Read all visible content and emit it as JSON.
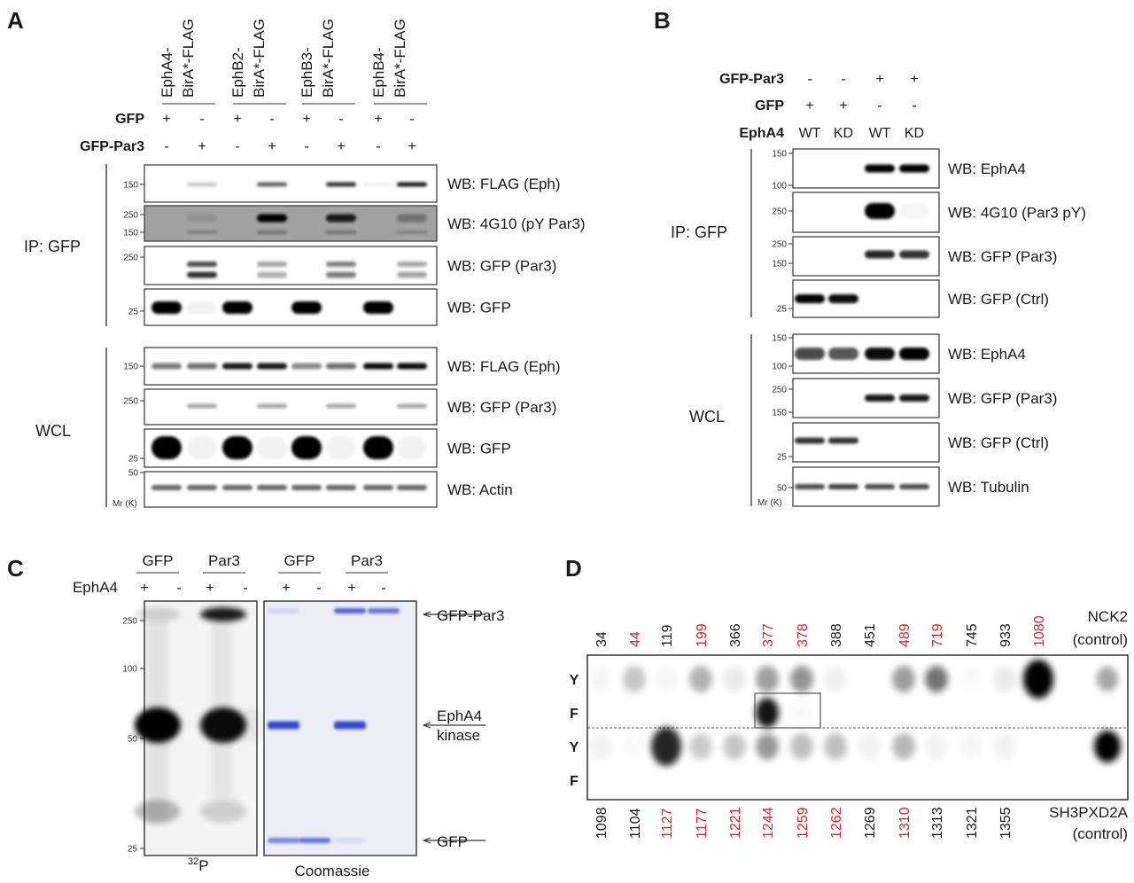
{
  "panel_a": {
    "label": "A",
    "constructs": [
      [
        "EphA4-",
        "BirA*-FLAG"
      ],
      [
        "EphB2-",
        "BirA*-FLAG"
      ],
      [
        "EphB3-",
        "BirA*-FLAG"
      ],
      [
        "EphB4-",
        "BirA*-FLAG"
      ]
    ],
    "rows": [
      {
        "label": "GFP",
        "values": [
          "+",
          "-",
          "+",
          "-",
          "+",
          "-",
          "+",
          "-"
        ]
      },
      {
        "label": "GFP-Par3",
        "values": [
          "-",
          "+",
          "-",
          "+",
          "-",
          "+",
          "-",
          "+"
        ]
      }
    ],
    "groups": [
      {
        "label": "IP: GFP",
        "blots": [
          {
            "label": "WB: FLAG (Eph)",
            "markers": [
              "150"
            ],
            "background": "#ffffff",
            "bands": [
              {
                "kDa": 150,
                "lanes": [
                  0,
                  0.2,
                  0,
                  0.6,
                  0,
                  0.8,
                  0.05,
                  0.9
                ]
              }
            ]
          },
          {
            "label": "WB: 4G10 (pY Par3)",
            "markers": [
              "250",
              "150"
            ],
            "background": "#a2a2a2",
            "bands": [
              {
                "kDa": 230,
                "lanes": [
                  0,
                  0.1,
                  0,
                  1,
                  0,
                  0.85,
                  0,
                  0.3
                ]
              },
              {
                "kDa": 150,
                "lanes": [
                  0,
                  0.2,
                  0,
                  0.3,
                  0,
                  0.3,
                  0,
                  0.2
                ]
              }
            ]
          },
          {
            "label": "WB: GFP (Par3)",
            "markers": [
              "250"
            ],
            "background": "#ffffff",
            "bands": [
              {
                "kDa": 220,
                "lanes": [
                  0,
                  0.7,
                  0,
                  0.35,
                  0,
                  0.5,
                  0,
                  0.35
                ]
              },
              {
                "kDa": 180,
                "lanes": [
                  0,
                  0.8,
                  0,
                  0.3,
                  0,
                  0.5,
                  0,
                  0.35
                ]
              }
            ]
          },
          {
            "label": "WB: GFP",
            "markers": [
              "25"
            ],
            "background": "#ffffff",
            "bands": [
              {
                "kDa": 27,
                "lanes": [
                  1,
                  0.05,
                  1,
                  0,
                  1,
                  0,
                  1,
                  0
                ]
              }
            ]
          }
        ]
      },
      {
        "label": "WCL",
        "blots": [
          {
            "label": "WB: FLAG (Eph)",
            "markers": [
              "150"
            ],
            "background": "#ffffff",
            "bands": [
              {
                "kDa": 150,
                "lanes": [
                  0.5,
                  0.55,
                  0.9,
                  0.9,
                  0.45,
                  0.55,
                  0.95,
                  0.95
                ]
              }
            ]
          },
          {
            "label": "WB: GFP (Par3)",
            "markers": [
              "250"
            ],
            "background": "#ffffff",
            "bands": [
              {
                "kDa": 220,
                "lanes": [
                  0,
                  0.35,
                  0,
                  0.35,
                  0,
                  0.35,
                  0,
                  0.35
                ]
              }
            ]
          },
          {
            "label": "WB: GFP",
            "markers": [
              "25"
            ],
            "background": "#ffffff",
            "bands": [
              {
                "kDa": 28,
                "lanes": [
                  1,
                  0.05,
                  1,
                  0.05,
                  1,
                  0.05,
                  1,
                  0.05
                ]
              }
            ]
          },
          {
            "label": "WB: Actin",
            "markers": [
              "50"
            ],
            "background": "#ffffff",
            "bands": [
              {
                "kDa": 42,
                "lanes": [
                  0.6,
                  0.6,
                  0.6,
                  0.6,
                  0.6,
                  0.6,
                  0.6,
                  0.6
                ]
              }
            ]
          }
        ]
      }
    ],
    "mr_label": "Mr (K)"
  },
  "panel_b": {
    "label": "B",
    "rows": [
      {
        "label": "GFP-Par3",
        "values": [
          "-",
          "-",
          "+",
          "+"
        ]
      },
      {
        "label": "GFP",
        "values": [
          "+",
          "+",
          "-",
          "-"
        ]
      },
      {
        "label": "EphA4",
        "values": [
          "WT",
          "KD",
          "WT",
          "KD"
        ]
      }
    ],
    "groups": [
      {
        "label": "IP: GFP",
        "blots": [
          {
            "label": "WB: EphA4",
            "markers": [
              "150",
              "100"
            ],
            "background": "#ffffff",
            "bands": [
              {
                "kDa": 120,
                "lanes": [
                  0,
                  0,
                  1,
                  1
                ]
              }
            ]
          },
          {
            "label": "WB: 4G10 (Par3 pY)",
            "markers": [
              "250"
            ],
            "background": "#ffffff",
            "bands": [
              {
                "kDa": 230,
                "lanes": [
                  0,
                  0,
                  1,
                  0.03
                ]
              }
            ]
          },
          {
            "label": "WB: GFP (Par3)",
            "markers": [
              "250",
              "150"
            ],
            "background": "#ffffff",
            "bands": [
              {
                "kDa": 200,
                "lanes": [
                  0,
                  0,
                  0.85,
                  0.8
                ]
              }
            ]
          },
          {
            "label": "WB: GFP (Ctrl)",
            "markers": [
              "25"
            ],
            "background": "#ffffff",
            "bands": [
              {
                "kDa": 28,
                "lanes": [
                  1,
                  0.95,
                  0,
                  0
                ]
              }
            ]
          }
        ]
      },
      {
        "label": "WCL",
        "blots": [
          {
            "label": "WB: EphA4",
            "markers": [
              "150",
              "100"
            ],
            "background": "#ffffff",
            "bands": [
              {
                "kDa": 120,
                "lanes": [
                  0.7,
                  0.65,
                  0.95,
                  1
                ]
              }
            ]
          },
          {
            "label": "WB: GFP (Par3)",
            "markers": [
              "250",
              "150"
            ],
            "background": "#ffffff",
            "bands": [
              {
                "kDa": 200,
                "lanes": [
                  0,
                  0,
                  0.9,
                  0.9
                ]
              }
            ]
          },
          {
            "label": "WB: GFP (Ctrl)",
            "markers": [
              "25"
            ],
            "background": "#ffffff",
            "bands": [
              {
                "kDa": 32,
                "lanes": [
                  0.8,
                  0.8,
                  0,
                  0
                ]
              }
            ]
          },
          {
            "label": "WB: Tubulin",
            "markers": [
              "50"
            ],
            "background": "#ffffff",
            "bands": [
              {
                "kDa": 50,
                "lanes": [
                  0.7,
                  0.75,
                  0.7,
                  0.7
                ]
              }
            ]
          }
        ]
      }
    ],
    "mr_label": "Mr (K)"
  },
  "panel_c": {
    "label": "C",
    "headers": [
      "GFP",
      "Par3",
      "GFP",
      "Par3"
    ],
    "row": {
      "label": "EphA4",
      "values": [
        "+",
        "-",
        "+",
        "-",
        "+",
        "-",
        "+",
        "-"
      ]
    },
    "markers": [
      "250",
      "100",
      "50",
      "25"
    ],
    "autorad": {
      "caption_sup": "32",
      "caption": "P",
      "bands": [
        {
          "kDa": 250,
          "lanes": [
            0.15,
            0,
            0.9,
            0
          ]
        },
        {
          "kDa": 56,
          "lanes": [
            1,
            0,
            0.95,
            0.05
          ]
        },
        {
          "kDa": 30,
          "lanes": [
            0.25,
            0,
            0.15,
            0
          ]
        }
      ]
    },
    "coomassie": {
      "caption": "Coomassie",
      "color": "#2a3fd0",
      "bands": [
        {
          "kDa": 250,
          "lanes": [
            0.15,
            0,
            0.8,
            0.7
          ]
        },
        {
          "kDa": 56,
          "lanes": [
            0.95,
            0,
            0.95,
            0
          ]
        },
        {
          "kDa": 27,
          "lanes": [
            0.6,
            0.7,
            0.1,
            0
          ]
        }
      ]
    },
    "arrows": [
      "GFP-Par3",
      "EphA4\nkinase",
      "GFP"
    ]
  },
  "panel_d": {
    "label": "D",
    "row_labels": [
      "Y",
      "F",
      "Y",
      "F"
    ],
    "top": {
      "numbers": [
        "34",
        "44",
        "119",
        "199",
        "366",
        "377",
        "378",
        "388",
        "451",
        "489",
        "719",
        "745",
        "933",
        "1080"
      ],
      "highlighted": [
        false,
        true,
        false,
        true,
        false,
        true,
        true,
        false,
        false,
        true,
        true,
        false,
        false,
        true
      ],
      "control": [
        "NCK2",
        "(control)"
      ],
      "Y": [
        0.03,
        0.22,
        0.03,
        0.3,
        0.08,
        0.38,
        0.42,
        0.06,
        0,
        0.38,
        0.55,
        0.02,
        0.08,
        1.0
      ],
      "F": [
        0,
        0,
        0,
        0,
        0,
        0.92,
        0.02,
        0,
        0,
        0,
        0,
        0,
        0,
        0
      ],
      "control_Y": 0.35,
      "control_F": 0
    },
    "bottom": {
      "numbers": [
        "1098",
        "1104",
        "1127",
        "1177",
        "1221",
        "1244",
        "1259",
        "1262",
        "1269",
        "1310",
        "1313",
        "1321",
        "1355"
      ],
      "highlighted": [
        false,
        false,
        true,
        true,
        true,
        true,
        true,
        true,
        false,
        true,
        false,
        false,
        false
      ],
      "control": [
        "SH3PXD2A",
        "(control)"
      ],
      "Y": [
        0.05,
        0.02,
        0.85,
        0.2,
        0.22,
        0.4,
        0.25,
        0.25,
        0.05,
        0.28,
        0.05,
        0.03,
        0.05
      ],
      "F": [
        0,
        0,
        0,
        0,
        0,
        0,
        0,
        0,
        0,
        0,
        0,
        0,
        0
      ],
      "control_Y": 1.0,
      "control_F": 0
    },
    "highlight_color": "#e0202a"
  }
}
